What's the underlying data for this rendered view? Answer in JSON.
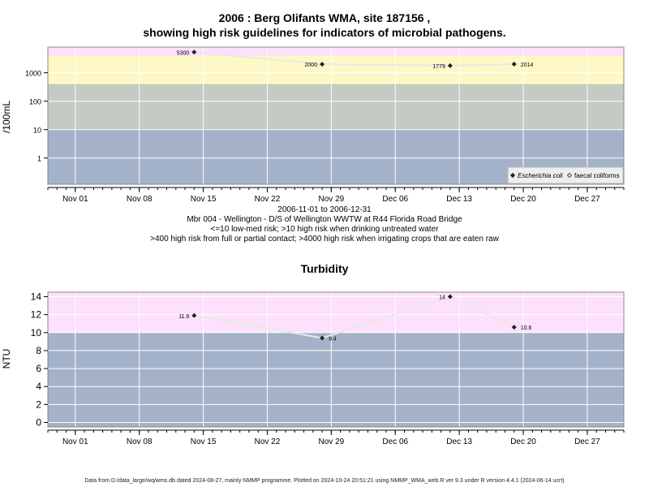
{
  "page": {
    "title_line1": "2006 : Berg Olifants WMA, site 187156 ,",
    "title_line2": "showing high risk guidelines for indicators of microbial pathogens.",
    "info_line1": "2006-11-01 to 2006-12-31",
    "info_line2": "Mbr 004 - Wellington - D/S of Wellington WWTW at R44 Florida Road Bridge",
    "info_line3": "<=10 low-med risk; >10 high risk when drinking untreated water",
    "info_line4": ">400 high risk from full or partial contact; >4000 high risk when irrigating crops that are eaten raw",
    "turbidity_title": "Turbidity",
    "footer": "Data from D:/data_large/wq/wms.db dated 2024-08-27, mainly NMMP programme. Plotted on 2024-10-24 20:51:21 using NMMP_WMA_web.R ver 9.3 under R version 4.4.1 (2024-06-14 ucrt)"
  },
  "chart_data": [
    {
      "type": "line",
      "ylabel": "/100mL",
      "yscale": "log",
      "ylim": [
        0.12,
        8000
      ],
      "xlim": [
        "2006-10-29",
        "2006-12-31"
      ],
      "y_ticks": [
        1,
        10,
        100,
        1000
      ],
      "y_tick_labels": [
        "1",
        "10",
        "100",
        "1000"
      ],
      "x_ticks": [
        "2006-11-01",
        "2006-11-08",
        "2006-11-15",
        "2006-11-22",
        "2006-11-29",
        "2006-12-06",
        "2006-12-13",
        "2006-12-20",
        "2006-12-27"
      ],
      "x_tick_labels": [
        "Nov 01",
        "Nov 08",
        "Nov 15",
        "Nov 22",
        "Nov 29",
        "Dec 06",
        "Dec 13",
        "Dec 20",
        "Dec 27"
      ],
      "bands": [
        {
          "from": 0.12,
          "to": 10,
          "color": "#a3b2c9"
        },
        {
          "from": 10,
          "to": 400,
          "color": "#c4cbc3"
        },
        {
          "from": 400,
          "to": 4000,
          "color": "#fdf8c6"
        },
        {
          "from": 4000,
          "to": 8000,
          "color": "#fde0fb"
        }
      ],
      "series": [
        {
          "name": "Escherichia coli",
          "marker": "filled-diamond",
          "x": [
            "2006-11-14",
            "2006-11-28",
            "2006-12-12",
            "2006-12-19"
          ],
          "y": [
            5300,
            2000,
            1779,
            2014
          ],
          "labels": [
            "5300",
            "2000",
            "1779",
            "2014"
          ]
        }
      ],
      "legend": {
        "position": "bottom-right",
        "entries": [
          {
            "label": "Escherichia coli",
            "marker": "filled-diamond",
            "italic": true
          },
          {
            "label": "faecal coliforms",
            "marker": "open-diamond",
            "italic": false
          }
        ]
      },
      "grid": true
    },
    {
      "type": "line",
      "title": "Turbidity",
      "ylabel": "NTU",
      "ylim": [
        -0.5,
        14.5
      ],
      "y_ticks": [
        0,
        2,
        4,
        6,
        8,
        10,
        12,
        14
      ],
      "y_tick_labels": [
        "0",
        "2",
        "4",
        "6",
        "8",
        "10",
        "12",
        "14"
      ],
      "xlim": [
        "2006-10-29",
        "2006-12-31"
      ],
      "x_ticks": [
        "2006-11-01",
        "2006-11-08",
        "2006-11-15",
        "2006-11-22",
        "2006-11-29",
        "2006-12-06",
        "2006-12-13",
        "2006-12-20",
        "2006-12-27"
      ],
      "x_tick_labels": [
        "Nov 01",
        "Nov 08",
        "Nov 15",
        "Nov 22",
        "Nov 29",
        "Dec 06",
        "Dec 13",
        "Dec 20",
        "Dec 27"
      ],
      "bands": [
        {
          "from": -0.5,
          "to": 10,
          "color": "#a3b2c9"
        },
        {
          "from": 10,
          "to": 14.5,
          "color": "#fde0fb"
        }
      ],
      "series": [
        {
          "name": "Turbidity",
          "marker": "filled-diamond",
          "x": [
            "2006-11-14",
            "2006-11-28",
            "2006-12-12",
            "2006-12-19"
          ],
          "y": [
            11.9,
            9.4,
            14,
            10.6
          ],
          "labels": [
            "11.9",
            "9.4",
            "14",
            "10.6"
          ]
        }
      ],
      "grid": true
    }
  ]
}
